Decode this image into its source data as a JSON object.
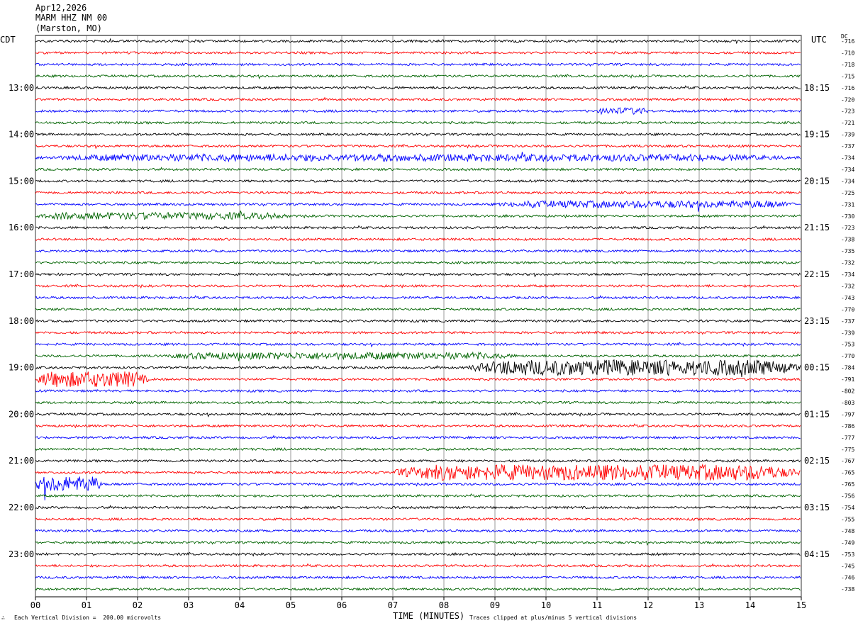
{
  "header": {
    "date": "Apr12,2026",
    "station": "MARM HHZ NM 00",
    "location": "(Marston, MO)"
  },
  "left_tz": "CDT",
  "right_tz": "UTC",
  "dc_label": "DC",
  "footer": {
    "scale_note": "Each Vertical Division =  200.00 microvolts",
    "xlabel": "TIME (MINUTES)",
    "clip_note": "Traces clipped at plus/minus 5 vertical divisions"
  },
  "colors": {
    "trace_cycle": [
      "#000000",
      "#ff0000",
      "#0000ff",
      "#006400"
    ],
    "grid": "#000000"
  },
  "chart_data": {
    "type": "line",
    "title": "",
    "xlabel": "TIME (MINUTES)",
    "xlim": [
      0,
      15
    ],
    "x_ticks": [
      "00",
      "01",
      "02",
      "03",
      "04",
      "05",
      "06",
      "07",
      "08",
      "09",
      "10",
      "11",
      "12",
      "13",
      "14",
      "15"
    ],
    "row_count": 48,
    "left_hour_labels": [
      {
        "row": 4,
        "label": "13:00"
      },
      {
        "row": 8,
        "label": "14:00"
      },
      {
        "row": 12,
        "label": "15:00"
      },
      {
        "row": 16,
        "label": "16:00"
      },
      {
        "row": 20,
        "label": "17:00"
      },
      {
        "row": 24,
        "label": "18:00"
      },
      {
        "row": 28,
        "label": "19:00"
      },
      {
        "row": 32,
        "label": "20:00"
      },
      {
        "row": 36,
        "label": "21:00"
      },
      {
        "row": 40,
        "label": "22:00"
      },
      {
        "row": 44,
        "label": "23:00"
      }
    ],
    "right_hour_labels": [
      {
        "row": 4,
        "label": "18:15"
      },
      {
        "row": 8,
        "label": "19:15"
      },
      {
        "row": 12,
        "label": "20:15"
      },
      {
        "row": 16,
        "label": "21:15"
      },
      {
        "row": 20,
        "label": "22:15"
      },
      {
        "row": 24,
        "label": "23:15"
      },
      {
        "row": 28,
        "label": "00:15"
      },
      {
        "row": 32,
        "label": "01:15"
      },
      {
        "row": 36,
        "label": "02:15"
      },
      {
        "row": 40,
        "label": "03:15"
      },
      {
        "row": 44,
        "label": "04:15"
      }
    ],
    "dc_offsets": [
      "-716",
      "-710",
      "-718",
      "-715",
      "-716",
      "-720",
      "-723",
      "-721",
      "-739",
      "-737",
      "-734",
      "-734",
      "-734",
      "-725",
      "-731",
      "-730",
      "-723",
      "-738",
      "-735",
      "-732",
      "-734",
      "-732",
      "-743",
      "-770",
      "-737",
      "-739",
      "-753",
      "-770",
      "-784",
      "-791",
      "-802",
      "-803",
      "-797",
      "-786",
      "-777",
      "-775",
      "-767",
      "-765",
      "-765",
      "-756",
      "-754",
      "-755",
      "-748",
      "-749",
      "-753",
      "-745",
      "-746",
      "-738"
    ],
    "trace_activity": [
      {
        "row": 6,
        "x_range": [
          11.0,
          12.0
        ],
        "level": "moderate"
      },
      {
        "row": 10,
        "x_range": [
          0.0,
          15.0
        ],
        "level": "moderate"
      },
      {
        "row": 14,
        "x_range": [
          9.0,
          15.0
        ],
        "level": "moderate"
      },
      {
        "row": 15,
        "x_range": [
          0.0,
          5.0
        ],
        "level": "moderate"
      },
      {
        "row": 27,
        "x_range": [
          2.5,
          9.5
        ],
        "level": "moderate"
      },
      {
        "row": 28,
        "x_range": [
          8.5,
          15.0
        ],
        "level": "high"
      },
      {
        "row": 29,
        "x_range": [
          0.0,
          2.2
        ],
        "level": "high"
      },
      {
        "row": 37,
        "x_range": [
          7.0,
          15.0
        ],
        "level": "high"
      },
      {
        "row": 38,
        "x_range": [
          0.0,
          1.3
        ],
        "level": "high"
      }
    ]
  }
}
